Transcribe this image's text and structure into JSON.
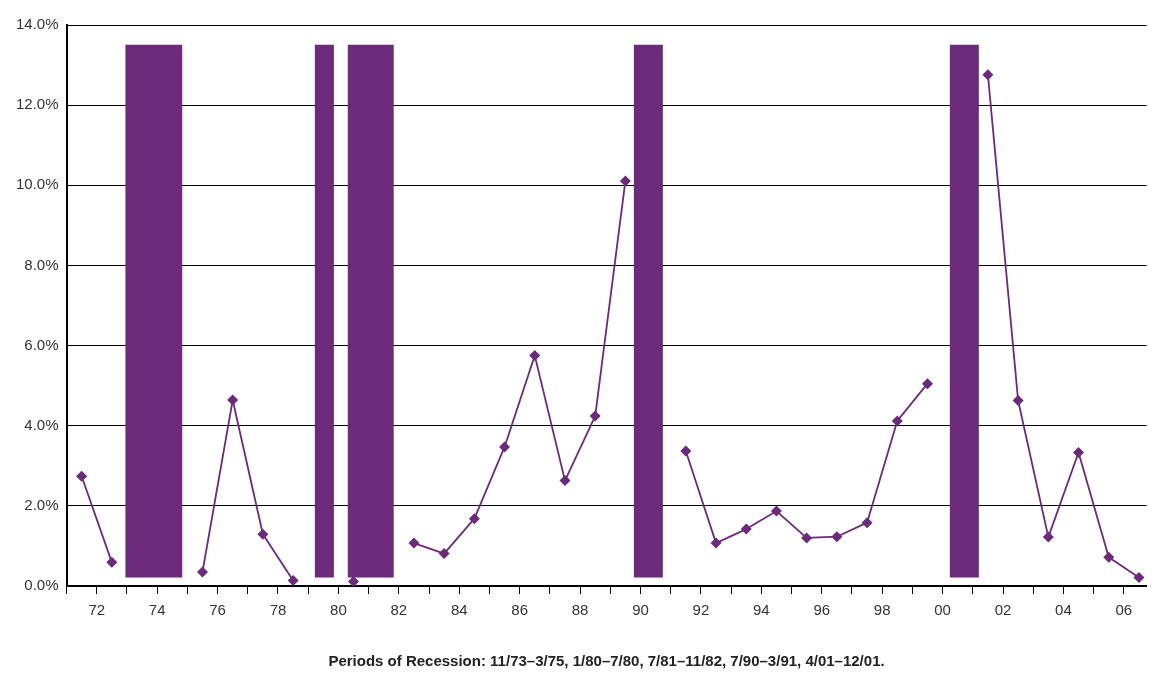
{
  "chart_data": {
    "type": "line",
    "x": [
      1971.5,
      1972.5,
      1973.5,
      1974.5,
      1975.5,
      1976.5,
      1977.5,
      1978.5,
      1979.5,
      1980.5,
      1981.5,
      1982.5,
      1983.5,
      1984.5,
      1985.5,
      1986.5,
      1987.5,
      1988.5,
      1989.5,
      1990.5,
      1991.5,
      1992.5,
      1993.5,
      1994.5,
      1995.5,
      1996.5,
      1997.5,
      1998.5,
      1999.5,
      2000.5,
      2001.5,
      2002.5,
      2003.5,
      2004.5,
      2005.5,
      2006.5
    ],
    "series": [
      {
        "color": "#6b2a7a",
        "values": [
          2.74,
          0.59,
          null,
          null,
          0.35,
          4.64,
          1.29,
          0.14,
          null,
          0.11,
          null,
          1.07,
          0.81,
          1.68,
          3.47,
          5.75,
          2.63,
          4.24,
          10.11,
          null,
          3.37,
          1.07,
          1.42,
          1.87,
          1.2,
          1.23,
          1.58,
          4.12,
          5.05,
          null,
          12.76,
          4.63,
          1.22,
          3.33,
          0.72,
          0.21
        ]
      }
    ],
    "xlim": [
      1971,
      2006.75
    ],
    "xticks": [
      {
        "value": 1971,
        "label": null
      },
      {
        "value": 1972,
        "label": "72"
      },
      {
        "value": 1973,
        "label": null
      },
      {
        "value": 1974,
        "label": "74"
      },
      {
        "value": 1975,
        "label": null
      },
      {
        "value": 1976,
        "label": "76"
      },
      {
        "value": 1977,
        "label": null
      },
      {
        "value": 1978,
        "label": "78"
      },
      {
        "value": 1979,
        "label": null
      },
      {
        "value": 1980,
        "label": "80"
      },
      {
        "value": 1981,
        "label": null
      },
      {
        "value": 1982,
        "label": "82"
      },
      {
        "value": 1983,
        "label": null
      },
      {
        "value": 1984,
        "label": "84"
      },
      {
        "value": 1985,
        "label": null
      },
      {
        "value": 1986,
        "label": "86"
      },
      {
        "value": 1987,
        "label": null
      },
      {
        "value": 1988,
        "label": "88"
      },
      {
        "value": 1989,
        "label": null
      },
      {
        "value": 1990,
        "label": "90"
      },
      {
        "value": 1991,
        "label": null
      },
      {
        "value": 1992,
        "label": "92"
      },
      {
        "value": 1993,
        "label": null
      },
      {
        "value": 1994,
        "label": "94"
      },
      {
        "value": 1995,
        "label": null
      },
      {
        "value": 1996,
        "label": "96"
      },
      {
        "value": 1997,
        "label": null
      },
      {
        "value": 1998,
        "label": "98"
      },
      {
        "value": 1999,
        "label": null
      },
      {
        "value": 2000,
        "label": "00"
      },
      {
        "value": 2001,
        "label": null
      },
      {
        "value": 2002,
        "label": "02"
      },
      {
        "value": 2003,
        "label": null
      },
      {
        "value": 2004,
        "label": "04"
      },
      {
        "value": 2005,
        "label": null
      },
      {
        "value": 2006,
        "label": "06"
      }
    ],
    "ylim": [
      0,
      14
    ],
    "yticks": [
      {
        "value": 0,
        "label": "0.0%"
      },
      {
        "value": 2,
        "label": "2.0%"
      },
      {
        "value": 4,
        "label": "4.0%"
      },
      {
        "value": 6,
        "label": "6.0%"
      },
      {
        "value": 8,
        "label": "8.0%"
      },
      {
        "value": 10,
        "label": "10.0%"
      },
      {
        "value": 12,
        "label": "12.0%"
      },
      {
        "value": 14,
        "label": "14.0%"
      }
    ],
    "grid": "y",
    "marker": "diamond",
    "line_style": "solid",
    "bands": [
      {
        "axis": "x",
        "from": 1972.95,
        "to": 1974.83,
        "color": "#6b2a7a"
      },
      {
        "axis": "x",
        "from": 1979.22,
        "to": 1979.85,
        "color": "#6b2a7a"
      },
      {
        "axis": "x",
        "from": 1980.31,
        "to": 1981.83,
        "color": "#6b2a7a"
      },
      {
        "axis": "x",
        "from": 1989.78,
        "to": 1990.74,
        "color": "#6b2a7a"
      },
      {
        "axis": "x",
        "from": 2000.24,
        "to": 2001.2,
        "color": "#6b2a7a"
      }
    ],
    "annotations": [
      "Periods of Recession: 11/73–3/75, 1/80–7/80, 7/81–11/82, 7/90–3/91, 4/01–12/01."
    ]
  }
}
